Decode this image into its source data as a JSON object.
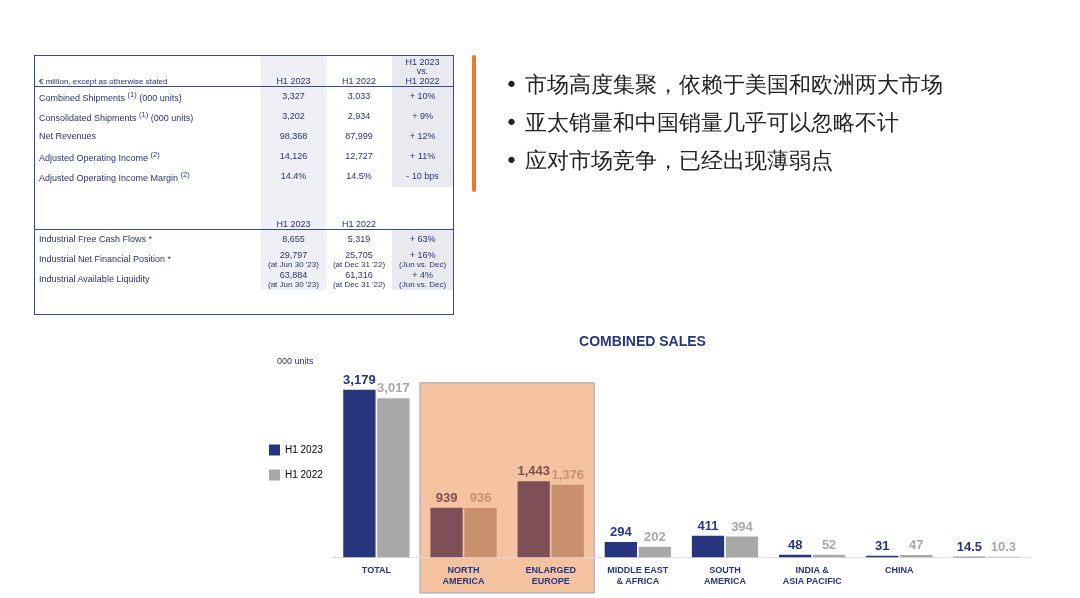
{
  "chart_data": [
    {
      "type": "other",
      "annotations": [
        "€ million, except as otherwise stated",
        "H1 2023",
        "H1 2022",
        "H1 2023\nvs.\nH1 2022",
        "Combined Shipments $^{(1)}$ (000 units)",
        "3,327",
        "3,033",
        "+ 10%",
        "Consolidated Shipments $^{(1)}$ (000 units)",
        "3,202",
        "2,934",
        "+ 9%",
        "Net Revenues",
        "98,368",
        "87,999",
        "+ 12%",
        "Adjusted Operating Income $^{(2)}$",
        "14,126",
        "12,727",
        "+ 11%",
        "Adjusted Operating Income Margin $^{(2)}$",
        "14.4%",
        "14.5%",
        "- 10 bps",
        "H1 2023",
        "H1 2022",
        "Industrial Free Cash Flows *",
        "8,655",
        "5,319",
        "+ 63%",
        "Industrial Net Financial Position *",
        "29,797\n(at Jun 30 '23)",
        "25,705\n(at Dec 31 '22)",
        "+ 16%\n(Jun vs. Dec)",
        "Industrial Available Liquidity",
        "63,884\n(at Jun 30 '23)",
        "61,316\n(at Dec 31 '22)",
        "+ 4%\n(Jun vs. Dec)"
      ]
    },
    {
      "type": "other",
      "annotations": [
        "• 市场高度集聚，依赖于美国和欧洲两大市场",
        "• 亚太销量和中国销量几乎可以忽略不计",
        "• 应对市场竞争，已经出现薄弱点"
      ]
    },
    {
      "type": "bar",
      "title": "COMBINED SALES",
      "annotations": [
        "000 units"
      ],
      "categories": [
        "TOTAL",
        "NORTH\nAMERICA",
        "ENLARGED\nEUROPE",
        "MIDDLE EAST\n& AFRICA",
        "SOUTH\nAMERICA",
        "INDIA &\nASIA PACIFIC",
        "CHINA",
        null
      ],
      "series": [
        {
          "name": "H1 2023",
          "color": "#26357e",
          "colors": [
            "#26357e",
            "#7f4f57",
            "#7f4f57",
            "#26357e",
            "#26357e",
            "#26357e",
            "#26357e",
            "#26357e"
          ],
          "values": [
            3179,
            939,
            1443,
            294,
            411,
            48,
            31,
            14.5
          ],
          "value_labels": [
            "3,179",
            "939",
            "1,443",
            "294",
            "411",
            "48",
            "31",
            "14.5"
          ]
        },
        {
          "name": "H1 2022",
          "color": "#a8a8a8",
          "colors": [
            "#a8a8a8",
            "#c8906c",
            "#c8906c",
            "#a8a8a8",
            "#a8a8a8",
            "#a8a8a8",
            "#a8a8a8",
            "#a8a8a8"
          ],
          "values": [
            3017,
            936,
            1376,
            202,
            394,
            52,
            47,
            10.3
          ],
          "value_labels": [
            "3,017",
            "936",
            "1,376",
            "202",
            "394",
            "52",
            "47",
            "10.3"
          ]
        }
      ],
      "bands": [
        {
          "axis": "x",
          "from": "NORTH\nAMERICA",
          "to": "ENLARGED\nEUROPE",
          "color": "#f6c3a0"
        }
      ],
      "legend": "left",
      "grid": false,
      "tick_labels": "x"
    }
  ]
}
